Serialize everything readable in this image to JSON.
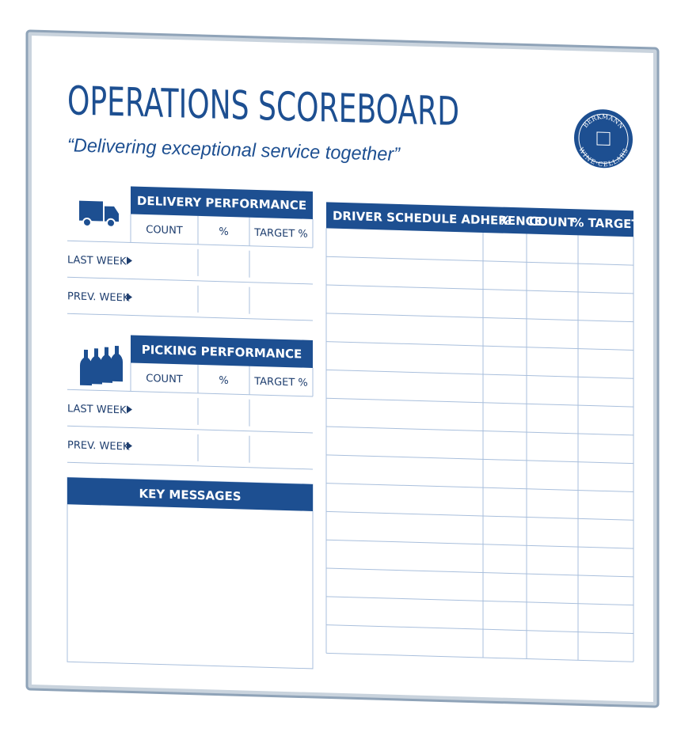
{
  "header": {
    "title": "OPERATIONS SCOREBOARD",
    "subtitle": "“Delivering exceptional service together”"
  },
  "logo": {
    "top": "BERKMANN",
    "bottom": "WINE·CELLARS"
  },
  "delivery": {
    "title": "DELIVERY PERFORMANCE",
    "columns": [
      "COUNT",
      "%",
      "TARGET %"
    ],
    "rows": [
      "LAST WEEK",
      "PREV. WEEK"
    ]
  },
  "picking": {
    "title": "PICKING PERFORMANCE",
    "columns": [
      "COUNT",
      "%",
      "TARGET %"
    ],
    "rows": [
      "LAST WEEK",
      "PREV. WEEK"
    ]
  },
  "key_messages": {
    "title": "KEY MESSAGES"
  },
  "driver": {
    "title": "DRIVER SCHEDULE ADHERENCE",
    "columns": [
      "%",
      "COUNT",
      "% TARGET"
    ]
  }
}
